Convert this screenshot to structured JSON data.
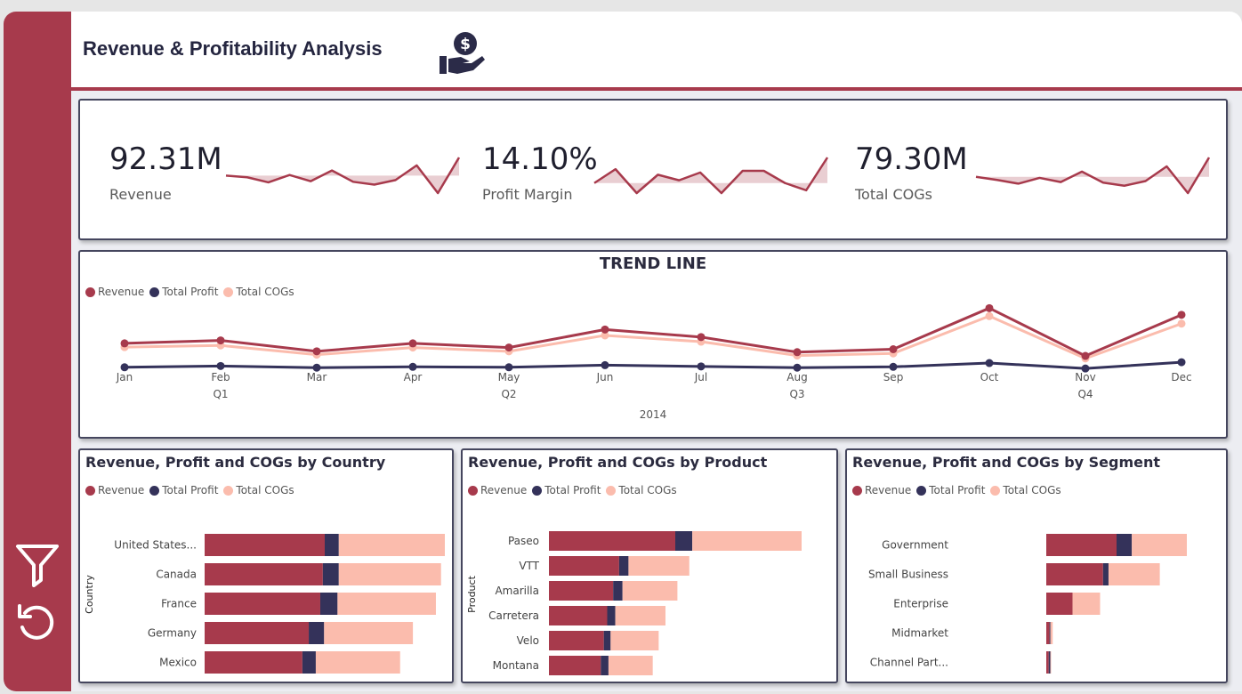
{
  "header": {
    "title": "Revenue & Profitability Analysis",
    "icon": "money-hand-icon"
  },
  "sidebar": {
    "icons": [
      "filter-icon",
      "reset-icon"
    ]
  },
  "colors": {
    "revenue": "#a73a4c",
    "profit": "#34325a",
    "cogs": "#fbbcad",
    "accent": "#a73a4c"
  },
  "kpis": [
    {
      "value": "92.31M",
      "label": "Revenue",
      "trend": [
        6.2,
        5.9,
        5.0,
        6.3,
        5.2,
        7.1,
        5.1,
        4.6,
        5.4,
        8.0,
        3.1,
        9.4
      ]
    },
    {
      "value": "14.10%",
      "label": "Profit Margin",
      "trend": [
        14.1,
        16.6,
        12.3,
        15.6,
        14.6,
        16.0,
        12.3,
        16.3,
        16.3,
        14.1,
        12.8,
        18.7
      ]
    },
    {
      "value": "79.30M",
      "label": "Total COGs",
      "trend": [
        5.9,
        5.3,
        4.6,
        5.7,
        4.9,
        6.9,
        4.8,
        4.2,
        5.1,
        7.9,
        2.8,
        9.6
      ]
    }
  ],
  "legend": {
    "revenue": "Revenue",
    "profit": "Total Profit",
    "cogs": "Total COGs"
  },
  "chart_data": [
    {
      "type": "line",
      "title": "TREND LINE",
      "x": [
        "Jan",
        "Feb",
        "Mar",
        "Apr",
        "May",
        "Jun",
        "Jul",
        "Aug",
        "Sep",
        "Oct",
        "Nov",
        "Dec"
      ],
      "quarters": [
        "Q1",
        "Q2",
        "Q3",
        "Q4"
      ],
      "year": "2014",
      "series": [
        {
          "name": "Revenue",
          "values": [
            6.6,
            7.3,
            4.7,
            6.6,
            5.6,
            9.9,
            8.1,
            4.5,
            5.2,
            15.0,
            3.6,
            13.4
          ]
        },
        {
          "name": "Total Profit",
          "values": [
            0.9,
            1.2,
            0.8,
            1.0,
            0.9,
            1.4,
            1.1,
            0.8,
            1.0,
            1.9,
            0.6,
            2.1
          ]
        },
        {
          "name": "Total COGs",
          "values": [
            5.7,
            6.1,
            3.9,
            5.6,
            4.7,
            8.5,
            7.0,
            3.7,
            4.2,
            13.1,
            3.0,
            11.3
          ]
        }
      ]
    },
    {
      "type": "bar",
      "title": "Revenue, Profit and COGs by Country",
      "axis_label": "Country",
      "categories": [
        "United States...",
        "Canada",
        "France",
        "Germany",
        "Mexico"
      ],
      "series": [
        {
          "name": "Revenue",
          "values": [
            18.8,
            18.5,
            18.1,
            16.3,
            15.3
          ]
        },
        {
          "name": "Total Profit",
          "values": [
            2.2,
            2.5,
            2.7,
            2.4,
            2.1
          ]
        },
        {
          "name": "Total COGs",
          "values": [
            16.6,
            16.0,
            15.4,
            13.9,
            13.2
          ]
        }
      ]
    },
    {
      "type": "bar",
      "title": "Revenue, Profit and COGs by Product",
      "axis_label": "Product",
      "categories": [
        "Paseo",
        "VTT",
        "Amarilla",
        "Carretera",
        "Velo",
        "Montana"
      ],
      "series": [
        {
          "name": "Revenue",
          "values": [
            29.7,
            16.5,
            15.1,
            13.7,
            12.9,
            12.2
          ]
        },
        {
          "name": "Total Profit",
          "values": [
            4.0,
            2.2,
            2.2,
            1.9,
            1.6,
            1.8
          ]
        },
        {
          "name": "Total COGs",
          "values": [
            25.7,
            14.3,
            12.9,
            11.8,
            11.3,
            10.4
          ]
        }
      ]
    },
    {
      "type": "bar",
      "title": "Revenue, Profit and COGs by Segment",
      "axis_label": "",
      "categories": [
        "Government",
        "Small Business",
        "Enterprise",
        "Midmarket",
        "Channel Part..."
      ],
      "series": [
        {
          "name": "Revenue",
          "values": [
            52.5,
            42.4,
            19.6,
            2.4,
            1.8
          ]
        },
        {
          "name": "Total Profit",
          "values": [
            11.4,
            4.1,
            0.0,
            0.7,
            1.3
          ]
        },
        {
          "name": "Total COGs",
          "values": [
            41.1,
            38.3,
            20.6,
            1.7,
            0.5
          ]
        }
      ]
    }
  ]
}
